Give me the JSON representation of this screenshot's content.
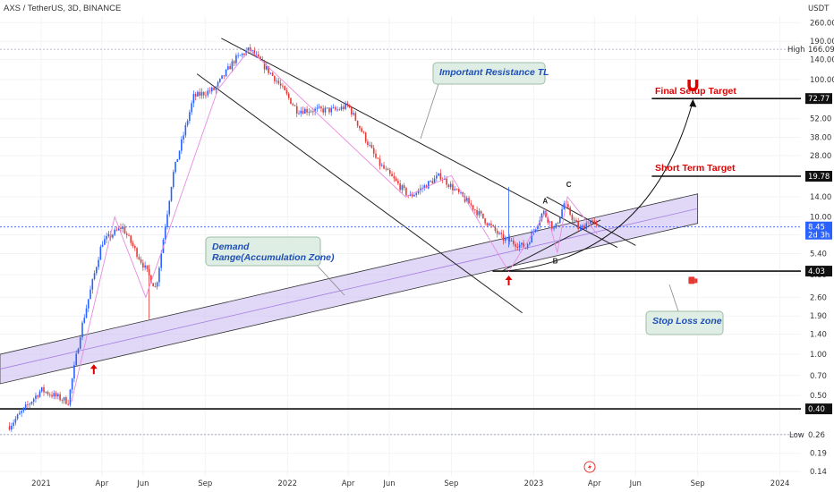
{
  "header": {
    "title": "AXS / TetherUS, 3D, BINANCE"
  },
  "axis": {
    "y_unit": "USDT",
    "y_ticks": [
      "260.00",
      "190.00",
      "140.00",
      "100.00",
      "72.00",
      "52.00",
      "38.00",
      "28.00",
      "20.00",
      "14.00",
      "10.00",
      "7.40",
      "5.40",
      "3.80",
      "2.60",
      "1.90",
      "1.40",
      "1.00",
      "0.70",
      "0.50",
      "0.26",
      "0.19",
      "0.14"
    ],
    "x_ticks": [
      "2021",
      "Apr",
      "Jun",
      "Sep",
      "2022",
      "Apr",
      "Jun",
      "Sep",
      "2023",
      "Apr",
      "Jun",
      "Sep",
      "2024"
    ]
  },
  "price_tags": {
    "high_label": "High",
    "high_value": "166.09",
    "target1": "72.77",
    "target2": "19.78",
    "last_price": "8.45",
    "countdown": "2d 3h",
    "stop": "4.03",
    "support": "0.40",
    "low_label": "Low",
    "low_value": "0.26"
  },
  "annotations": {
    "resistance": "Important Resistance TL",
    "demand": "Demand\nRange(Accumulation Zone)",
    "final_target": "Final Setup Target",
    "short_target": "Short Term Target",
    "stop_loss": "Stop Loss zone",
    "point_a": "A",
    "point_b": "B",
    "point_c": "C"
  },
  "colors": {
    "up": "#2962ff",
    "down": "#e53935",
    "zone": "#c9b8f0",
    "target": "#e00000",
    "note": "#1f4fb4",
    "price_tag": "#2962ff"
  },
  "chart_data": {
    "type": "candlestick",
    "title": "AXS / TetherUS, 3D, BINANCE",
    "y_scale": "log",
    "ylim": [
      0.13,
      290
    ],
    "x_range": [
      "2020-11",
      "2024-02"
    ],
    "price_path": [
      {
        "date": "2020-11-15",
        "price": 0.3
      },
      {
        "date": "2021-01-01",
        "price": 0.55
      },
      {
        "date": "2021-02-10",
        "price": 0.45
      },
      {
        "date": "2021-03-01",
        "price": 1.5
      },
      {
        "date": "2021-04-01",
        "price": 6.5
      },
      {
        "date": "2021-05-01",
        "price": 8.5
      },
      {
        "date": "2021-06-01",
        "price": 4.5
      },
      {
        "date": "2021-06-20",
        "price": 3.0
      },
      {
        "date": "2021-07-15",
        "price": 20
      },
      {
        "date": "2021-08-15",
        "price": 75
      },
      {
        "date": "2021-09-15",
        "price": 85
      },
      {
        "date": "2021-10-15",
        "price": 140
      },
      {
        "date": "2021-11-06",
        "price": 166
      },
      {
        "date": "2021-12-15",
        "price": 100
      },
      {
        "date": "2022-01-15",
        "price": 60
      },
      {
        "date": "2022-03-15",
        "price": 60
      },
      {
        "date": "2022-04-01",
        "price": 65
      },
      {
        "date": "2022-05-15",
        "price": 25
      },
      {
        "date": "2022-07-01",
        "price": 14
      },
      {
        "date": "2022-08-15",
        "price": 20
      },
      {
        "date": "2022-10-01",
        "price": 12
      },
      {
        "date": "2022-11-15",
        "price": 7
      },
      {
        "date": "2022-12-20",
        "price": 6
      },
      {
        "date": "2023-01-15",
        "price": 11
      },
      {
        "date": "2023-02-01",
        "price": 8
      },
      {
        "date": "2023-02-15",
        "price": 12.5
      },
      {
        "date": "2023-03-10",
        "price": 8
      },
      {
        "date": "2023-03-25",
        "price": 9.5
      },
      {
        "date": "2023-04-05",
        "price": 8.45
      }
    ],
    "levels": [
      {
        "label": "Final Setup Target",
        "value": 72.77
      },
      {
        "label": "Short Term Target",
        "value": 19.78
      },
      {
        "label": "High",
        "value": 166.09
      },
      {
        "label": "",
        "value": 4.03
      },
      {
        "label": "",
        "value": 0.4
      },
      {
        "label": "Low",
        "value": 0.26
      }
    ]
  }
}
